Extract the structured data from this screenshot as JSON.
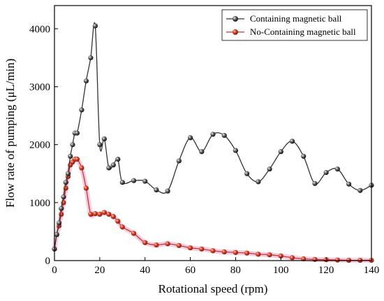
{
  "chart_data": {
    "type": "line",
    "xlabel": "Rotational speed (rpm)",
    "ylabel": "Flow rate of pumping (μL/min)",
    "xlim": [
      0,
      140
    ],
    "ylim": [
      0,
      4400
    ],
    "xticks": [
      0,
      20,
      40,
      60,
      80,
      100,
      120,
      140
    ],
    "yticks": [
      0,
      1000,
      2000,
      3000,
      4000
    ],
    "xtick_labels": [
      "0",
      "20",
      "40",
      "60",
      "80",
      "100",
      "120",
      "140"
    ],
    "ytick_labels": [
      "0",
      "1000",
      "2000",
      "3000",
      "4000"
    ],
    "grid": false,
    "legend_position": "top-right",
    "series": [
      {
        "name": "Containing magnetic ball",
        "color": "#333333",
        "marker": "sphere-black",
        "x": [
          0,
          1,
          2,
          3,
          4,
          5,
          6,
          7,
          8,
          9,
          10,
          12,
          14,
          16,
          18,
          20,
          22,
          24,
          26,
          28,
          30,
          35,
          40,
          45,
          50,
          55,
          60,
          65,
          70,
          75,
          80,
          85,
          90,
          95,
          100,
          105,
          110,
          115,
          120,
          125,
          130,
          135,
          140
        ],
        "y": [
          200,
          450,
          650,
          900,
          1100,
          1350,
          1500,
          1800,
          2000,
          2200,
          2200,
          2600,
          3100,
          3500,
          4050,
          2000,
          2100,
          1600,
          1650,
          1750,
          1350,
          1380,
          1370,
          1220,
          1200,
          1720,
          2120,
          1880,
          2180,
          2160,
          1900,
          1500,
          1360,
          1580,
          1880,
          2060,
          1800,
          1330,
          1520,
          1580,
          1320,
          1210,
          1300
        ]
      },
      {
        "name": "No-Containing magnetic ball",
        "color": "#c0392b",
        "marker": "sphere-red",
        "x": [
          0,
          1,
          2,
          3,
          4,
          5,
          6,
          7,
          8,
          9,
          10,
          12,
          14,
          16,
          18,
          20,
          22,
          24,
          26,
          28,
          30,
          35,
          40,
          45,
          50,
          55,
          60,
          65,
          70,
          75,
          80,
          85,
          90,
          95,
          100,
          105,
          110,
          115,
          120,
          125,
          130,
          135,
          140
        ],
        "y": [
          200,
          450,
          600,
          800,
          1000,
          1250,
          1450,
          1650,
          1700,
          1750,
          1750,
          1600,
          1250,
          800,
          810,
          800,
          830,
          800,
          760,
          680,
          580,
          470,
          310,
          270,
          290,
          260,
          220,
          200,
          170,
          150,
          140,
          130,
          110,
          100,
          80,
          50,
          30,
          20,
          15,
          10,
          5,
          5,
          5
        ]
      }
    ]
  }
}
